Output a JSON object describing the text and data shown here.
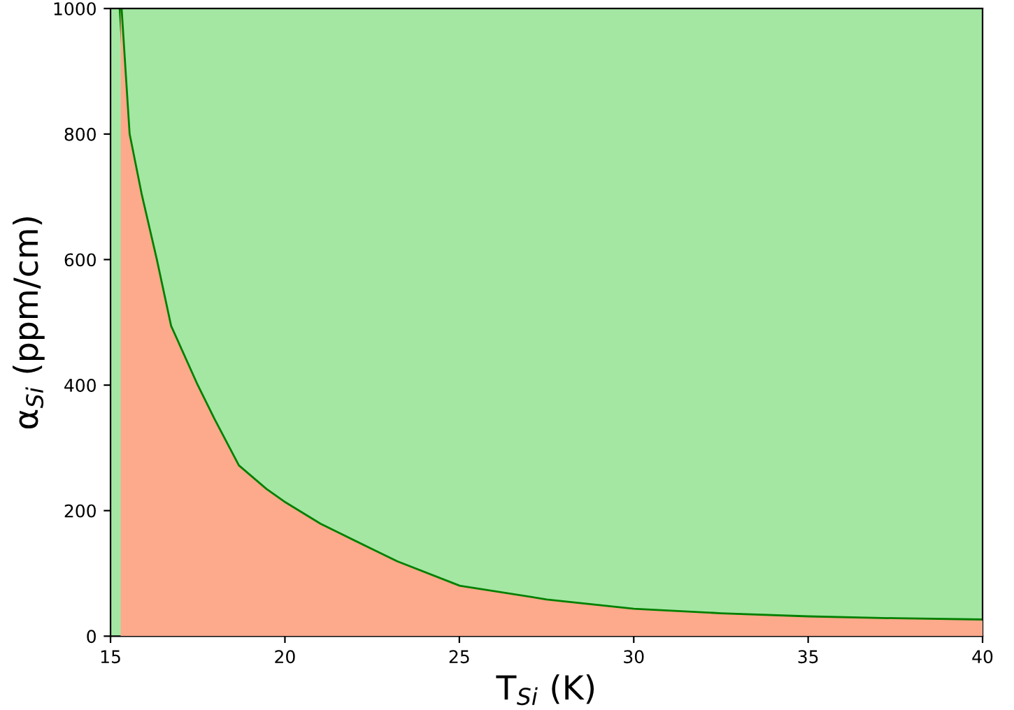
{
  "chart_data": {
    "type": "area",
    "xlabel": "T$_{Si}$ (K)",
    "ylabel": "α$_{Si}$ (ppm/cm)",
    "xlim": [
      15,
      40
    ],
    "xticks": [
      15,
      20,
      25,
      30,
      35,
      40
    ],
    "ylim": [
      0,
      1000
    ],
    "yticks": [
      0,
      200,
      400,
      600,
      800,
      1000
    ],
    "grid": false,
    "legend": false,
    "series": [
      {
        "color": "#fda98b",
        "x": [
          15.29,
          15.52,
          15.87,
          16.3,
          16.71,
          17.47,
          17.95,
          18.66,
          19.44,
          20,
          21,
          22.5,
          23.2,
          25,
          27.5,
          30,
          32.5,
          35,
          37.5,
          40
        ],
        "values": [
          1000,
          800,
          703,
          600,
          494,
          400,
          346,
          271,
          234,
          212,
          178,
          137,
          118,
          79,
          57,
          42,
          35,
          30,
          27,
          25
        ]
      },
      {
        "type": "line",
        "color": "#008000",
        "x": [
          15.29,
          15.52,
          15.87,
          16.3,
          16.71,
          17.47,
          17.95,
          18.66,
          19.44,
          20,
          21,
          22.5,
          23.2,
          25,
          27.5,
          30,
          32.5,
          35,
          37.5,
          40
        ],
        "values": [
          1000,
          800,
          703,
          600,
          494,
          400,
          346,
          271,
          234,
          212,
          178,
          137,
          118,
          79,
          57,
          42,
          35,
          30,
          27,
          25
        ]
      }
    ]
  }
}
